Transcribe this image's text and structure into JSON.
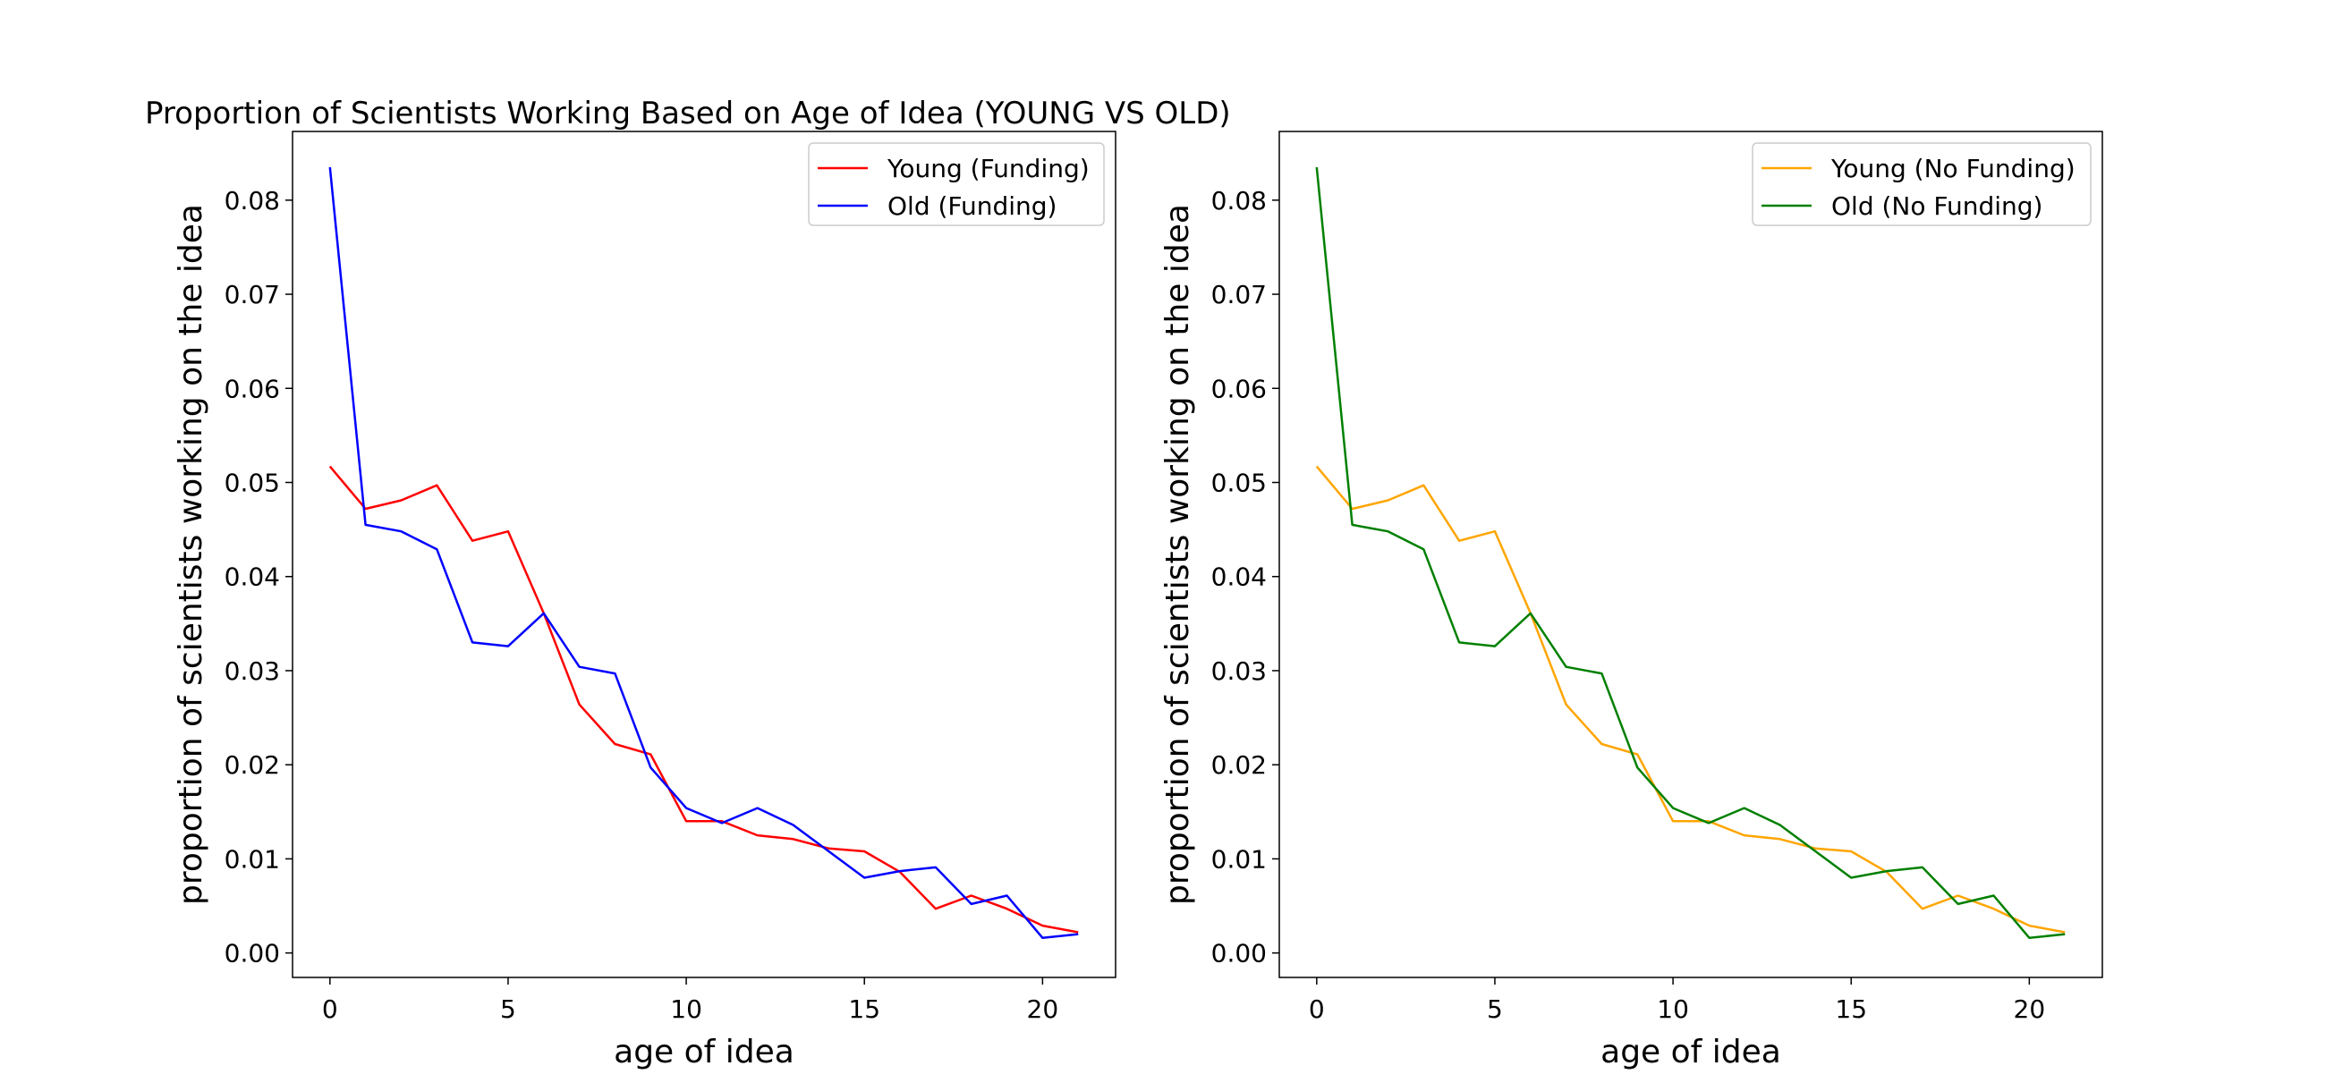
{
  "figure": {
    "title": "Proportion of Scientists Working Based on Age of Idea (YOUNG VS OLD)"
  },
  "chart_data": [
    {
      "type": "line",
      "title": "Proportion of Scientists Working Based on Age of Idea (YOUNG VS OLD)",
      "xlabel": "age of idea",
      "ylabel": "proportion of scientists working on the idea",
      "xlim": [
        -1.05,
        22.05
      ],
      "ylim": [
        -0.0026,
        0.0873
      ],
      "xticks": [
        0,
        5,
        10,
        15,
        20
      ],
      "xtick_labels": [
        "0",
        "5",
        "10",
        "15",
        "20"
      ],
      "yticks": [
        0.0,
        0.01,
        0.02,
        0.03,
        0.04,
        0.05,
        0.06,
        0.07,
        0.08
      ],
      "ytick_labels": [
        "0.00",
        "0.01",
        "0.02",
        "0.03",
        "0.04",
        "0.05",
        "0.06",
        "0.07",
        "0.08"
      ],
      "grid": false,
      "legend_position": "upper right",
      "x": [
        0,
        1,
        2,
        3,
        4,
        5,
        6,
        7,
        8,
        9,
        10,
        11,
        12,
        13,
        14,
        15,
        16,
        17,
        18,
        19,
        20,
        21
      ],
      "series": [
        {
          "name": "Young (Funding)",
          "color": "#ff0000",
          "values": [
            0.0517,
            0.0472,
            0.0481,
            0.0497,
            0.0438,
            0.0448,
            0.0361,
            0.0264,
            0.0222,
            0.0211,
            0.014,
            0.014,
            0.0125,
            0.0121,
            0.0111,
            0.0108,
            0.0086,
            0.0047,
            0.0061,
            0.0047,
            0.0029,
            0.0022
          ]
        },
        {
          "name": "Old (Funding)",
          "color": "#0000ff",
          "values": [
            0.0835,
            0.0455,
            0.0448,
            0.0429,
            0.033,
            0.0326,
            0.0361,
            0.0304,
            0.0297,
            0.0197,
            0.0154,
            0.0138,
            0.0154,
            0.0136,
            0.0108,
            0.008,
            0.0087,
            0.0091,
            0.0052,
            0.0061,
            0.0016,
            0.002
          ]
        }
      ]
    },
    {
      "type": "line",
      "title": "",
      "xlabel": "age of idea",
      "ylabel": "proportion of scientists working on the idea",
      "xlim": [
        -1.05,
        22.05
      ],
      "ylim": [
        -0.0026,
        0.0873
      ],
      "xticks": [
        0,
        5,
        10,
        15,
        20
      ],
      "xtick_labels": [
        "0",
        "5",
        "10",
        "15",
        "20"
      ],
      "yticks": [
        0.0,
        0.01,
        0.02,
        0.03,
        0.04,
        0.05,
        0.06,
        0.07,
        0.08
      ],
      "ytick_labels": [
        "0.00",
        "0.01",
        "0.02",
        "0.03",
        "0.04",
        "0.05",
        "0.06",
        "0.07",
        "0.08"
      ],
      "grid": false,
      "legend_position": "upper right",
      "x": [
        0,
        1,
        2,
        3,
        4,
        5,
        6,
        7,
        8,
        9,
        10,
        11,
        12,
        13,
        14,
        15,
        16,
        17,
        18,
        19,
        20,
        21
      ],
      "series": [
        {
          "name": "Young (No Funding)",
          "color": "#ffa500",
          "values": [
            0.0517,
            0.0472,
            0.0481,
            0.0497,
            0.0438,
            0.0448,
            0.0361,
            0.0264,
            0.0222,
            0.0211,
            0.014,
            0.014,
            0.0125,
            0.0121,
            0.0111,
            0.0108,
            0.0086,
            0.0047,
            0.0061,
            0.0047,
            0.0029,
            0.0022
          ]
        },
        {
          "name": "Old (No Funding)",
          "color": "#008000",
          "values": [
            0.0835,
            0.0455,
            0.0448,
            0.0429,
            0.033,
            0.0326,
            0.0361,
            0.0304,
            0.0297,
            0.0197,
            0.0154,
            0.0138,
            0.0154,
            0.0136,
            0.0108,
            0.008,
            0.0087,
            0.0091,
            0.0052,
            0.0061,
            0.0016,
            0.002
          ]
        }
      ]
    }
  ]
}
